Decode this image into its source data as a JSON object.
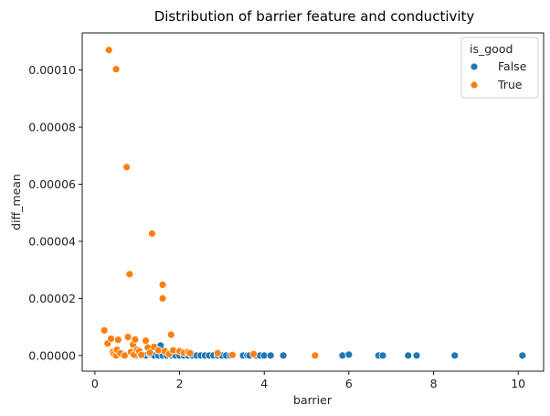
{
  "chart_data": {
    "type": "scatter",
    "title": "Distribution of barrier feature and conductivity",
    "xlabel": "barrier",
    "ylabel": "diff_mean",
    "xlim": [
      -0.3,
      10.6
    ],
    "ylim": [
      -5.5e-06,
      0.000113
    ],
    "xticks": [
      0,
      2,
      4,
      6,
      8,
      10
    ],
    "xtick_labels": [
      "0",
      "2",
      "4",
      "6",
      "8",
      "10"
    ],
    "yticks": [
      0,
      2e-05,
      4e-05,
      6e-05,
      8e-05,
      0.0001
    ],
    "ytick_labels": [
      "0.00000",
      "0.00002",
      "0.00004",
      "0.00006",
      "0.00008",
      "0.00010"
    ],
    "grid": false,
    "legend": {
      "title": "is_good",
      "placement": "top-right",
      "entries": [
        "False",
        "True"
      ]
    },
    "series": [
      {
        "name": "False",
        "color": "#1f77b4",
        "x": [
          0.95,
          1.1,
          1.2,
          1.3,
          1.4,
          1.5,
          1.55,
          1.6,
          1.7,
          1.8,
          1.9,
          2.0,
          2.1,
          2.2,
          2.3,
          2.4,
          2.5,
          2.6,
          2.7,
          2.8,
          2.9,
          3.0,
          3.1,
          3.2,
          3.5,
          3.6,
          3.65,
          3.8,
          3.9,
          4.0,
          4.15,
          4.45,
          5.85,
          6.0,
          6.7,
          6.8,
          7.4,
          7.6,
          8.5,
          10.1
        ],
        "y": [
          0,
          0,
          0,
          5e-07,
          0,
          0,
          3.5e-06,
          0,
          0,
          0,
          0,
          0,
          0,
          0,
          0,
          0,
          0,
          0,
          0,
          0,
          0,
          0,
          0,
          0,
          0,
          0,
          0,
          0,
          0,
          0,
          0,
          0,
          0,
          3e-07,
          0,
          0,
          0,
          0,
          0,
          0
        ]
      },
      {
        "name": "True",
        "color": "#ff7f0e",
        "x": [
          0.22,
          0.3,
          0.33,
          0.38,
          0.42,
          0.45,
          0.5,
          0.5,
          0.52,
          0.55,
          0.6,
          0.7,
          0.75,
          0.78,
          0.82,
          0.85,
          0.9,
          0.92,
          0.95,
          1.0,
          1.05,
          1.1,
          1.2,
          1.25,
          1.3,
          1.35,
          1.4,
          1.5,
          1.6,
          1.6,
          1.65,
          1.75,
          1.8,
          1.85,
          2.0,
          2.1,
          2.2,
          2.25,
          2.9,
          3.25,
          3.75,
          5.2
        ],
        "y": [
          8.8e-06,
          4.2e-06,
          0.000107,
          5.9e-06,
          1.2e-06,
          5e-07,
          0.0001003,
          0,
          2e-06,
          5.5e-06,
          8e-07,
          0,
          6.6e-05,
          6.5e-06,
          2.85e-05,
          1.2e-06,
          3.8e-06,
          3e-07,
          5.6e-06,
          2e-06,
          1.5e-06,
          2e-07,
          5.2e-06,
          2.8e-06,
          1e-06,
          4.27e-05,
          3e-06,
          1.8e-06,
          2.48e-05,
          2e-05,
          1.5e-06,
          5e-07,
          7.3e-06,
          1.8e-06,
          1.5e-06,
          1e-06,
          1.2e-06,
          8e-07,
          8e-07,
          2e-07,
          5e-07,
          0
        ]
      }
    ]
  }
}
